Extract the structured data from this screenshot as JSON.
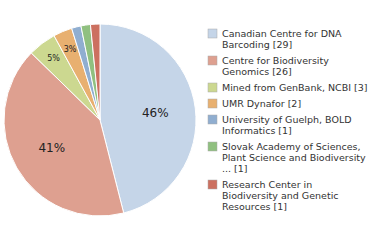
{
  "chart_data": {
    "type": "pie",
    "categories": [
      "Canadian Centre for DNA\nBarcoding [29]",
      "Centre for Biodiversity\nGenomics [26]",
      "Mined from GenBank, NCBI [3]",
      "UMR Dynafor [2]",
      "University of Guelph, BOLD\nInformatics [1]",
      "Slovak Academy of Sciences,\nPlant Science and Biodiversity\n... [1]",
      "Research Center in\nBiodiversity and Genetic\nResources [1]"
    ],
    "values": [
      46.03,
      41.27,
      4.76,
      3.17,
      1.59,
      1.59,
      1.59
    ],
    "value_labels": [
      "46%",
      "41%",
      "5%",
      "3%",
      null,
      null,
      null
    ],
    "data_labels": true,
    "colors": [
      "#c5d5e8",
      "#dea090",
      "#ccd890",
      "#e8b070",
      "#90aed0",
      "#90c080",
      "#cc7060"
    ],
    "legend": "right"
  }
}
